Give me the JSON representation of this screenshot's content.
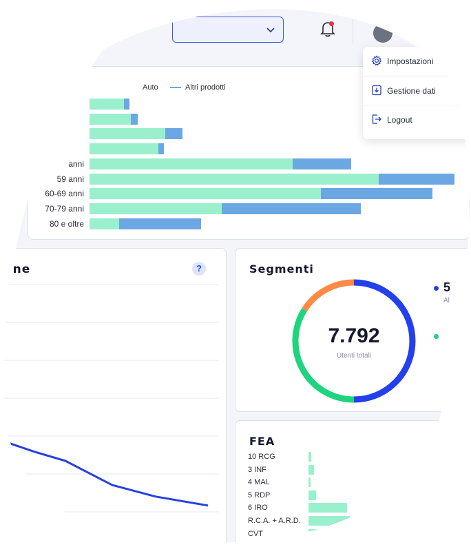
{
  "topbar": {
    "select_value": "",
    "notifications": {
      "has_unread": true
    }
  },
  "user_menu": {
    "items": [
      {
        "label": "Impostazioni",
        "icon": "gear-icon"
      },
      {
        "label": "Gestione dati",
        "icon": "download-icon"
      },
      {
        "label": "Logout",
        "icon": "logout-icon"
      }
    ]
  },
  "age_chart": {
    "legend": [
      {
        "label": "Auto",
        "color": "#9af0cc"
      },
      {
        "label": "Altri prodotti",
        "color": "#6ba7e2"
      }
    ],
    "chart_data": {
      "type": "bar",
      "orientation": "horizontal-stacked",
      "categories": [
        "",
        "",
        "",
        "",
        "anni",
        "59 anni",
        "60-69 anni",
        "70-79 anni",
        "80 e oltre"
      ],
      "series": [
        {
          "name": "Auto",
          "values": [
            50,
            60,
            110,
            100,
            295,
            420,
            336,
            192,
            43
          ]
        },
        {
          "name": "Altri prodotti",
          "values": [
            8,
            10,
            25,
            8,
            85,
            110,
            162,
            202,
            119
          ]
        }
      ]
    }
  },
  "line_card": {
    "title": "line",
    "help_label": "?",
    "chart_data": {
      "type": "line",
      "x": [
        0,
        1,
        2,
        3,
        4,
        5
      ],
      "values": [
        58,
        47,
        40,
        21,
        12,
        5
      ],
      "color": "#2640e0"
    }
  },
  "segmenti": {
    "title": "Segmenti",
    "total_value": "7.792",
    "total_label": "Utenti totali",
    "legend_value": "5",
    "legend_sub": "Al",
    "chart_data": {
      "type": "pie",
      "variant": "donut",
      "slices": [
        {
          "value": 50,
          "color": "#2440ec"
        },
        {
          "value": 34,
          "color": "#1ed47f"
        },
        {
          "value": 16,
          "color": "#ff8a45"
        }
      ]
    }
  },
  "fea": {
    "title": "FEA",
    "chart_data": {
      "type": "bar",
      "orientation": "horizontal",
      "categories": [
        "10 RCG",
        "3 INF",
        "4 MAL",
        "5 RDP",
        "6 IRO",
        "R.C.A. + A.R.D.",
        "CVT"
      ],
      "values": [
        4,
        8,
        3,
        11,
        56,
        60,
        60
      ]
    }
  }
}
